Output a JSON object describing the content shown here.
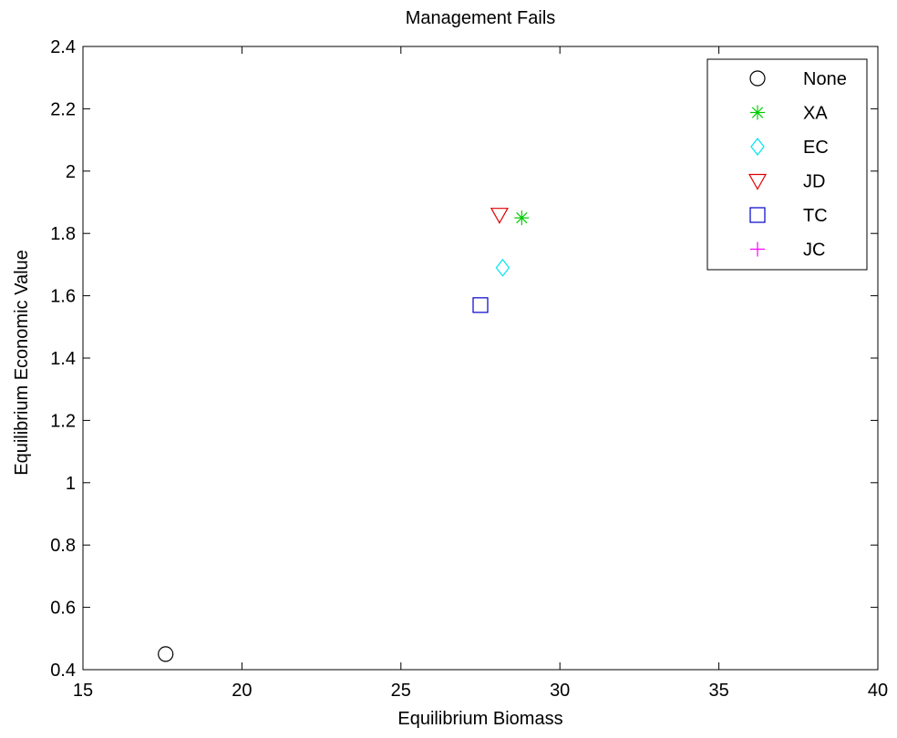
{
  "chart_data": {
    "type": "scatter",
    "title": "Management Fails",
    "xlabel": "Equilibrium Biomass",
    "ylabel": "Equilibrium Economic Value",
    "xlim": [
      15,
      40
    ],
    "ylim": [
      0.4,
      2.4
    ],
    "xticks": [
      15,
      20,
      25,
      30,
      35,
      40
    ],
    "yticks": [
      0.4,
      0.6,
      0.8,
      1,
      1.2,
      1.4,
      1.6,
      1.8,
      2,
      2.2,
      2.4
    ],
    "grid": false,
    "legend_position": "top-right",
    "series": [
      {
        "name": "None",
        "marker": "circle",
        "color": "#000000",
        "points": [
          [
            17.6,
            0.45
          ]
        ]
      },
      {
        "name": "XA",
        "marker": "asterisk",
        "color": "#00cc00",
        "points": [
          [
            28.8,
            1.85
          ]
        ]
      },
      {
        "name": "EC",
        "marker": "diamond",
        "color": "#00e5ee",
        "points": [
          [
            28.2,
            1.69
          ]
        ]
      },
      {
        "name": "JD",
        "marker": "triangle-down",
        "color": "#e00000",
        "points": [
          [
            28.1,
            1.86
          ]
        ]
      },
      {
        "name": "TC",
        "marker": "square",
        "color": "#0000cc",
        "points": [
          [
            27.5,
            1.57
          ]
        ]
      },
      {
        "name": "JC",
        "marker": "plus",
        "color": "#ff00ff",
        "points": []
      }
    ]
  }
}
